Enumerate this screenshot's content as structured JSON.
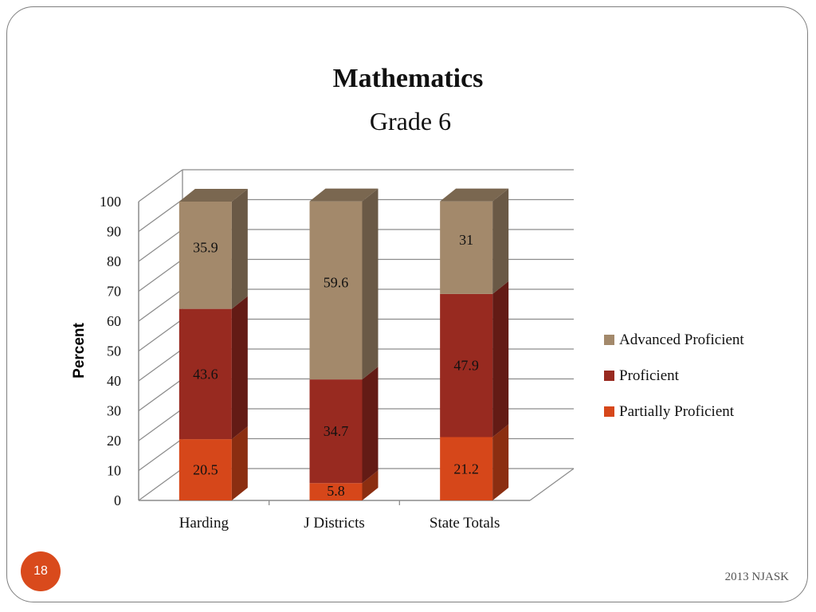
{
  "slide": {
    "page_number": "18",
    "footer": "2013 NJASK"
  },
  "chart_data": {
    "type": "bar",
    "stacked": true,
    "three_d": true,
    "title": "Mathematics",
    "subtitle": "Grade 6",
    "ylabel": "Percent",
    "xlabel": "",
    "ylim": [
      0,
      100
    ],
    "yticks": [
      0,
      10,
      20,
      30,
      40,
      50,
      60,
      70,
      80,
      90,
      100
    ],
    "grid": true,
    "legend_position": "right",
    "categories": [
      "Harding",
      "J Districts",
      "State Totals"
    ],
    "series": [
      {
        "name": "Partially Proficient",
        "values": [
          20.5,
          5.8,
          21.2
        ],
        "color": "#d6471a"
      },
      {
        "name": "Proficient",
        "values": [
          43.6,
          34.7,
          47.9
        ],
        "color": "#982a20"
      },
      {
        "name": "Advanced Proficient",
        "values": [
          35.9,
          59.6,
          31
        ],
        "color": "#a3896b"
      }
    ],
    "legend_order": [
      "Advanced Proficient",
      "Proficient",
      "Partially Proficient"
    ]
  }
}
